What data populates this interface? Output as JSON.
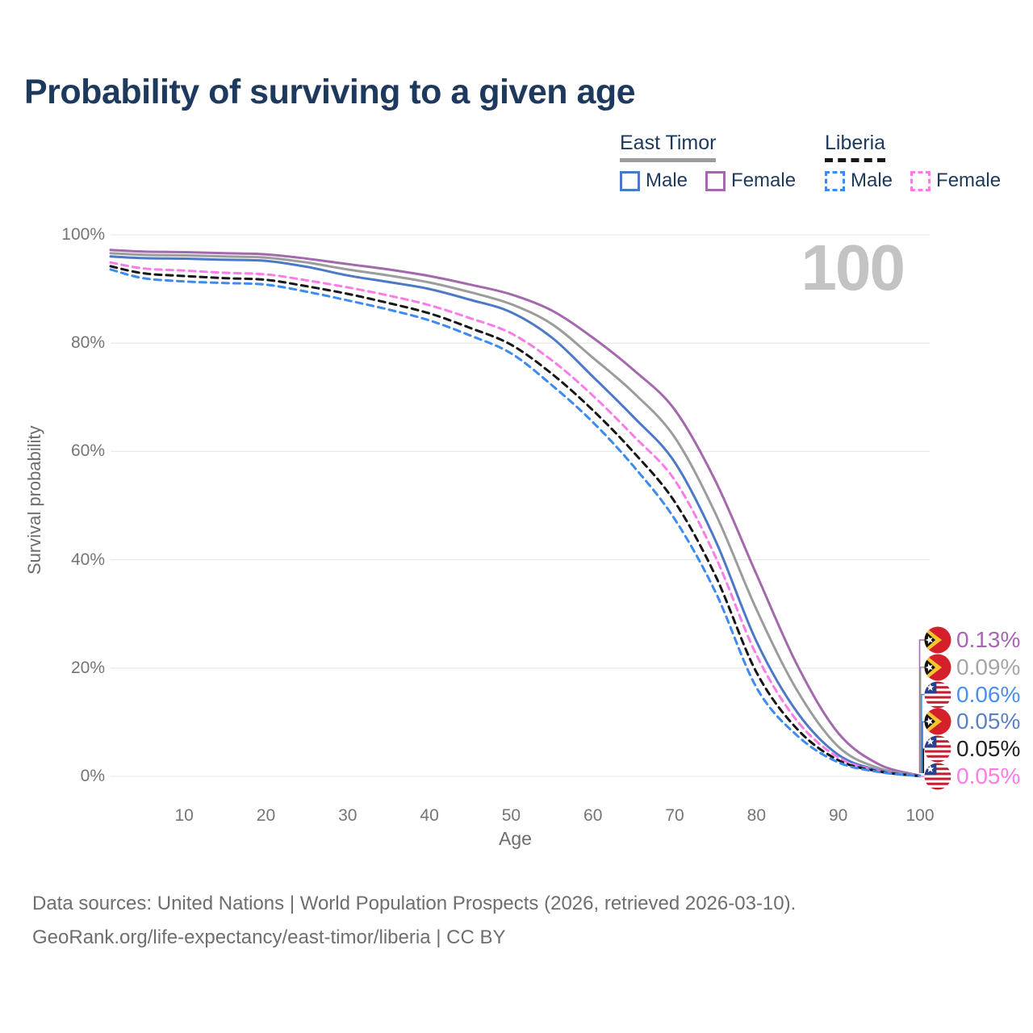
{
  "title": "Probability of surviving to a given age",
  "age_counter": "100",
  "legend": {
    "groups": [
      {
        "label": "East Timor",
        "line_style": "solid",
        "underline_color": "#9c9c9c",
        "items": [
          {
            "label": "Male",
            "color": "#4c79c5"
          },
          {
            "label": "Female",
            "color": "#a468ad"
          }
        ]
      },
      {
        "label": "Liberia",
        "line_style": "dashed",
        "underline_color": "#161616",
        "items": [
          {
            "label": "Male",
            "color": "#3d8af0"
          },
          {
            "label": "Female",
            "color": "#fb7ce8"
          }
        ]
      }
    ]
  },
  "chart_data": {
    "type": "line",
    "title": "Probability of surviving to a given age",
    "xlabel": "Age",
    "ylabel": "Survival probability",
    "xlim": [
      1,
      100
    ],
    "ylim": [
      0,
      100
    ],
    "grid": "horizontal",
    "xticks": [
      "10",
      "20",
      "30",
      "40",
      "50",
      "60",
      "70",
      "80",
      "90",
      "100"
    ],
    "xtick_values": [
      10,
      20,
      30,
      40,
      50,
      60,
      70,
      80,
      90,
      100
    ],
    "ytick_labels": [
      "0%",
      "20%",
      "40%",
      "60%",
      "80%",
      "100%"
    ],
    "ytick_values": [
      0,
      20,
      40,
      60,
      80,
      100
    ],
    "x": [
      1,
      5,
      10,
      15,
      20,
      25,
      30,
      35,
      40,
      45,
      50,
      55,
      60,
      65,
      70,
      75,
      80,
      85,
      90,
      95,
      100
    ],
    "series": [
      {
        "id": "east-timor-female",
        "name": "East Timor — Female",
        "color": "#a468ad",
        "dashed": false,
        "values": [
          97.2,
          96.9,
          96.8,
          96.6,
          96.4,
          95.6,
          94.6,
          93.6,
          92.4,
          90.8,
          89.0,
          86.0,
          81.0,
          75.0,
          67.7,
          54.5,
          37.3,
          20.5,
          8.0,
          2.2,
          0.13
        ]
      },
      {
        "id": "east-timor-all",
        "name": "East Timor — Both sexes",
        "color": "#9c9c9c",
        "dashed": false,
        "values": [
          96.6,
          96.3,
          96.2,
          96.0,
          95.8,
          94.9,
          93.6,
          92.5,
          91.2,
          89.4,
          87.2,
          83.5,
          77.3,
          70.8,
          62.6,
          48.5,
          30.8,
          15.8,
          5.5,
          1.5,
          0.09
        ]
      },
      {
        "id": "east-timor-male",
        "name": "East Timor — Male",
        "color": "#4c79c5",
        "dashed": false,
        "values": [
          96.0,
          95.7,
          95.6,
          95.4,
          95.2,
          94.1,
          92.5,
          91.3,
          90.0,
          88.0,
          85.7,
          81.0,
          73.8,
          66.3,
          58.0,
          43.5,
          24.9,
          11.8,
          4.0,
          1.1,
          0.05
        ]
      },
      {
        "id": "liberia-female",
        "name": "Liberia — Female",
        "color": "#fb7ce8",
        "dashed": true,
        "values": [
          94.9,
          93.8,
          93.4,
          93.0,
          92.7,
          91.6,
          90.3,
          88.8,
          87.0,
          84.6,
          81.8,
          76.8,
          70.3,
          62.8,
          54.7,
          40.5,
          22.4,
          10.2,
          3.5,
          1.0,
          0.05
        ]
      },
      {
        "id": "liberia-all",
        "name": "Liberia — Both sexes",
        "color": "#161616",
        "dashed": true,
        "values": [
          94.2,
          92.9,
          92.4,
          92.0,
          91.7,
          90.5,
          89.1,
          87.4,
          85.5,
          82.8,
          79.7,
          74.3,
          67.6,
          59.8,
          50.7,
          37.0,
          19.2,
          8.7,
          3.0,
          0.9,
          0.05
        ]
      },
      {
        "id": "liberia-male",
        "name": "Liberia — Male",
        "color": "#3d8af0",
        "dashed": true,
        "values": [
          93.6,
          92.0,
          91.4,
          91.1,
          90.8,
          89.5,
          87.9,
          86.2,
          84.2,
          81.4,
          78.1,
          72.2,
          65.4,
          57.2,
          47.5,
          34.0,
          16.4,
          7.5,
          2.6,
          0.8,
          0.06
        ]
      }
    ],
    "end_labels": [
      {
        "value": "0.13%",
        "flag": "east-timor",
        "color": "#aa64b5",
        "line_color": "#a468ad",
        "series_id": "east-timor-female"
      },
      {
        "value": "0.09%",
        "flag": "east-timor",
        "color": "#a6a6a6",
        "line_color": "#9c9c9c",
        "series_id": "east-timor-all"
      },
      {
        "value": "0.06%",
        "flag": "liberia",
        "color": "#4a8ef0",
        "line_color": "#3d8af0",
        "series_id": "liberia-male"
      },
      {
        "value": "0.05%",
        "flag": "east-timor",
        "color": "#5c80c6",
        "line_color": "#4c79c5",
        "series_id": "east-timor-male"
      },
      {
        "value": "0.05%",
        "flag": "liberia",
        "color": "#222222",
        "line_color": "#161616",
        "series_id": "liberia-all"
      },
      {
        "value": "0.05%",
        "flag": "liberia",
        "color": "#fb7ce8",
        "line_color": "#fb7ce8",
        "series_id": "liberia-female"
      }
    ],
    "legend_position": "top-right"
  },
  "footer": {
    "line1": "Data sources: United Nations | World Population Prospects (2026, retrieved 2026-03-10).",
    "line2": "GeoRank.org/life-expectancy/east-timor/liberia | CC BY"
  }
}
